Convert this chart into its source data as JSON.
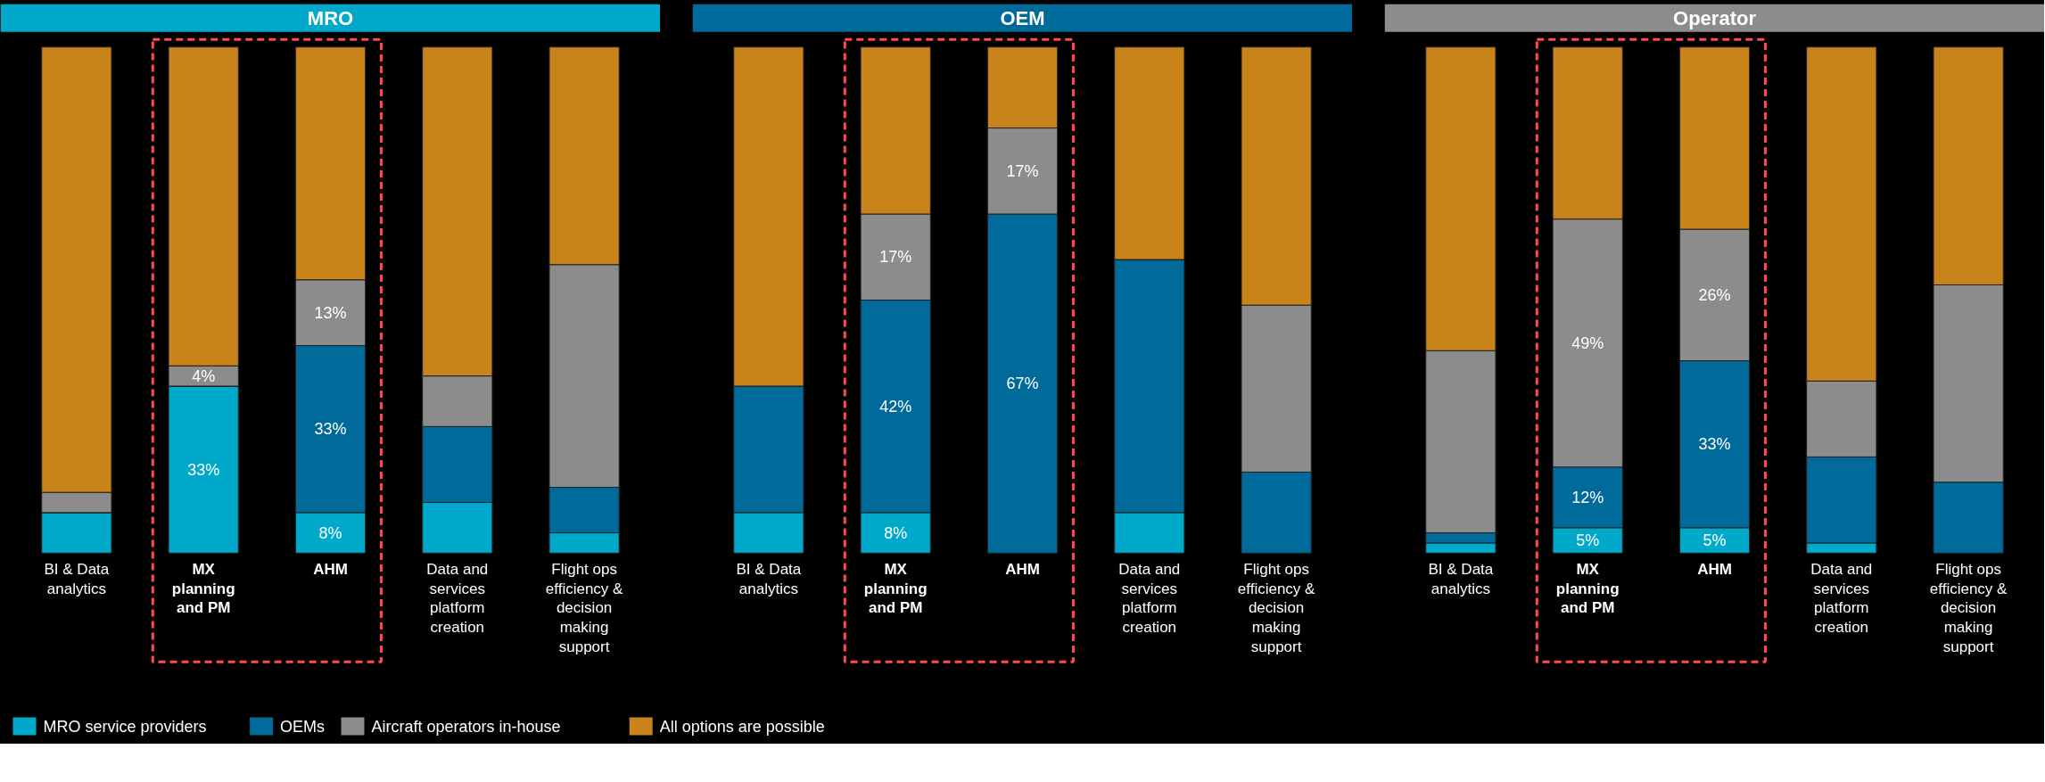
{
  "chart_data": [
    {
      "type": "bar",
      "stacked": true,
      "title": "MRO",
      "tick_labels": "x",
      "legend": "bottom",
      "ylim": [
        0,
        100
      ],
      "categories": [
        "BI & Data analytics",
        "MX planning and PM",
        "AHM",
        "Data and services platform creation",
        "Flight ops efficiency & decision making support"
      ],
      "series": [
        {
          "name": "MRO service providers",
          "color": "#00a9c9",
          "values": [
            8,
            33,
            8,
            10,
            4
          ],
          "value_labels": [
            null,
            "33%",
            "8%",
            null,
            null
          ]
        },
        {
          "name": "OEMs",
          "color": "#006b9a",
          "values": [
            0,
            0,
            33,
            15,
            9
          ],
          "value_labels": [
            null,
            null,
            "33%",
            null,
            null
          ]
        },
        {
          "name": "Aircraft operators in-house",
          "color": "#8c8c8c",
          "values": [
            4,
            4,
            13,
            10,
            44
          ],
          "value_labels": [
            null,
            "4%",
            "13%",
            null,
            null
          ]
        },
        {
          "name": "All options are possible",
          "color": "#c8841a",
          "values": [
            88,
            63,
            46,
            65,
            43
          ]
        }
      ]
    },
    {
      "type": "bar",
      "stacked": true,
      "title": "OEM",
      "tick_labels": "x",
      "ylim": [
        0,
        100
      ],
      "categories": [
        "BI & Data analytics",
        "MX planning and PM",
        "AHM",
        "Data and services platform creation",
        "Flight ops efficiency & decision making support"
      ],
      "series": [
        {
          "color": "#00a9c9",
          "values": [
            8,
            8,
            0,
            8,
            0
          ],
          "value_labels": [
            null,
            "8%",
            null,
            null,
            null
          ]
        },
        {
          "color": "#006b9a",
          "values": [
            25,
            42,
            67,
            50,
            16
          ],
          "value_labels": [
            null,
            "42%",
            "67%",
            null,
            null
          ]
        },
        {
          "color": "#8c8c8c",
          "values": [
            0,
            17,
            17,
            0,
            33
          ],
          "value_labels": [
            null,
            "17%",
            "17%",
            null,
            null
          ]
        },
        {
          "color": "#c8841a",
          "values": [
            67,
            33,
            16,
            42,
            51
          ]
        }
      ]
    },
    {
      "type": "bar",
      "stacked": true,
      "title": "Operator",
      "tick_labels": "x",
      "ylim": [
        0,
        100
      ],
      "categories": [
        "BI & Data analytics",
        "MX planning and PM",
        "AHM",
        "Data and services platform creation",
        "Flight ops efficiency & decision making support"
      ],
      "series": [
        {
          "color": "#00a9c9",
          "values": [
            2,
            5,
            5,
            2,
            0
          ],
          "value_labels": [
            null,
            "5%",
            "5%",
            null,
            null
          ]
        },
        {
          "color": "#006b9a",
          "values": [
            2,
            12,
            33,
            17,
            14
          ],
          "value_labels": [
            null,
            "12%",
            "33%",
            null,
            null
          ]
        },
        {
          "color": "#8c8c8c",
          "values": [
            36,
            49,
            26,
            15,
            39
          ],
          "value_labels": [
            null,
            "49%",
            "26%",
            null,
            null
          ]
        },
        {
          "color": "#c8841a",
          "values": [
            60,
            34,
            36,
            66,
            47
          ]
        }
      ]
    }
  ]
}
